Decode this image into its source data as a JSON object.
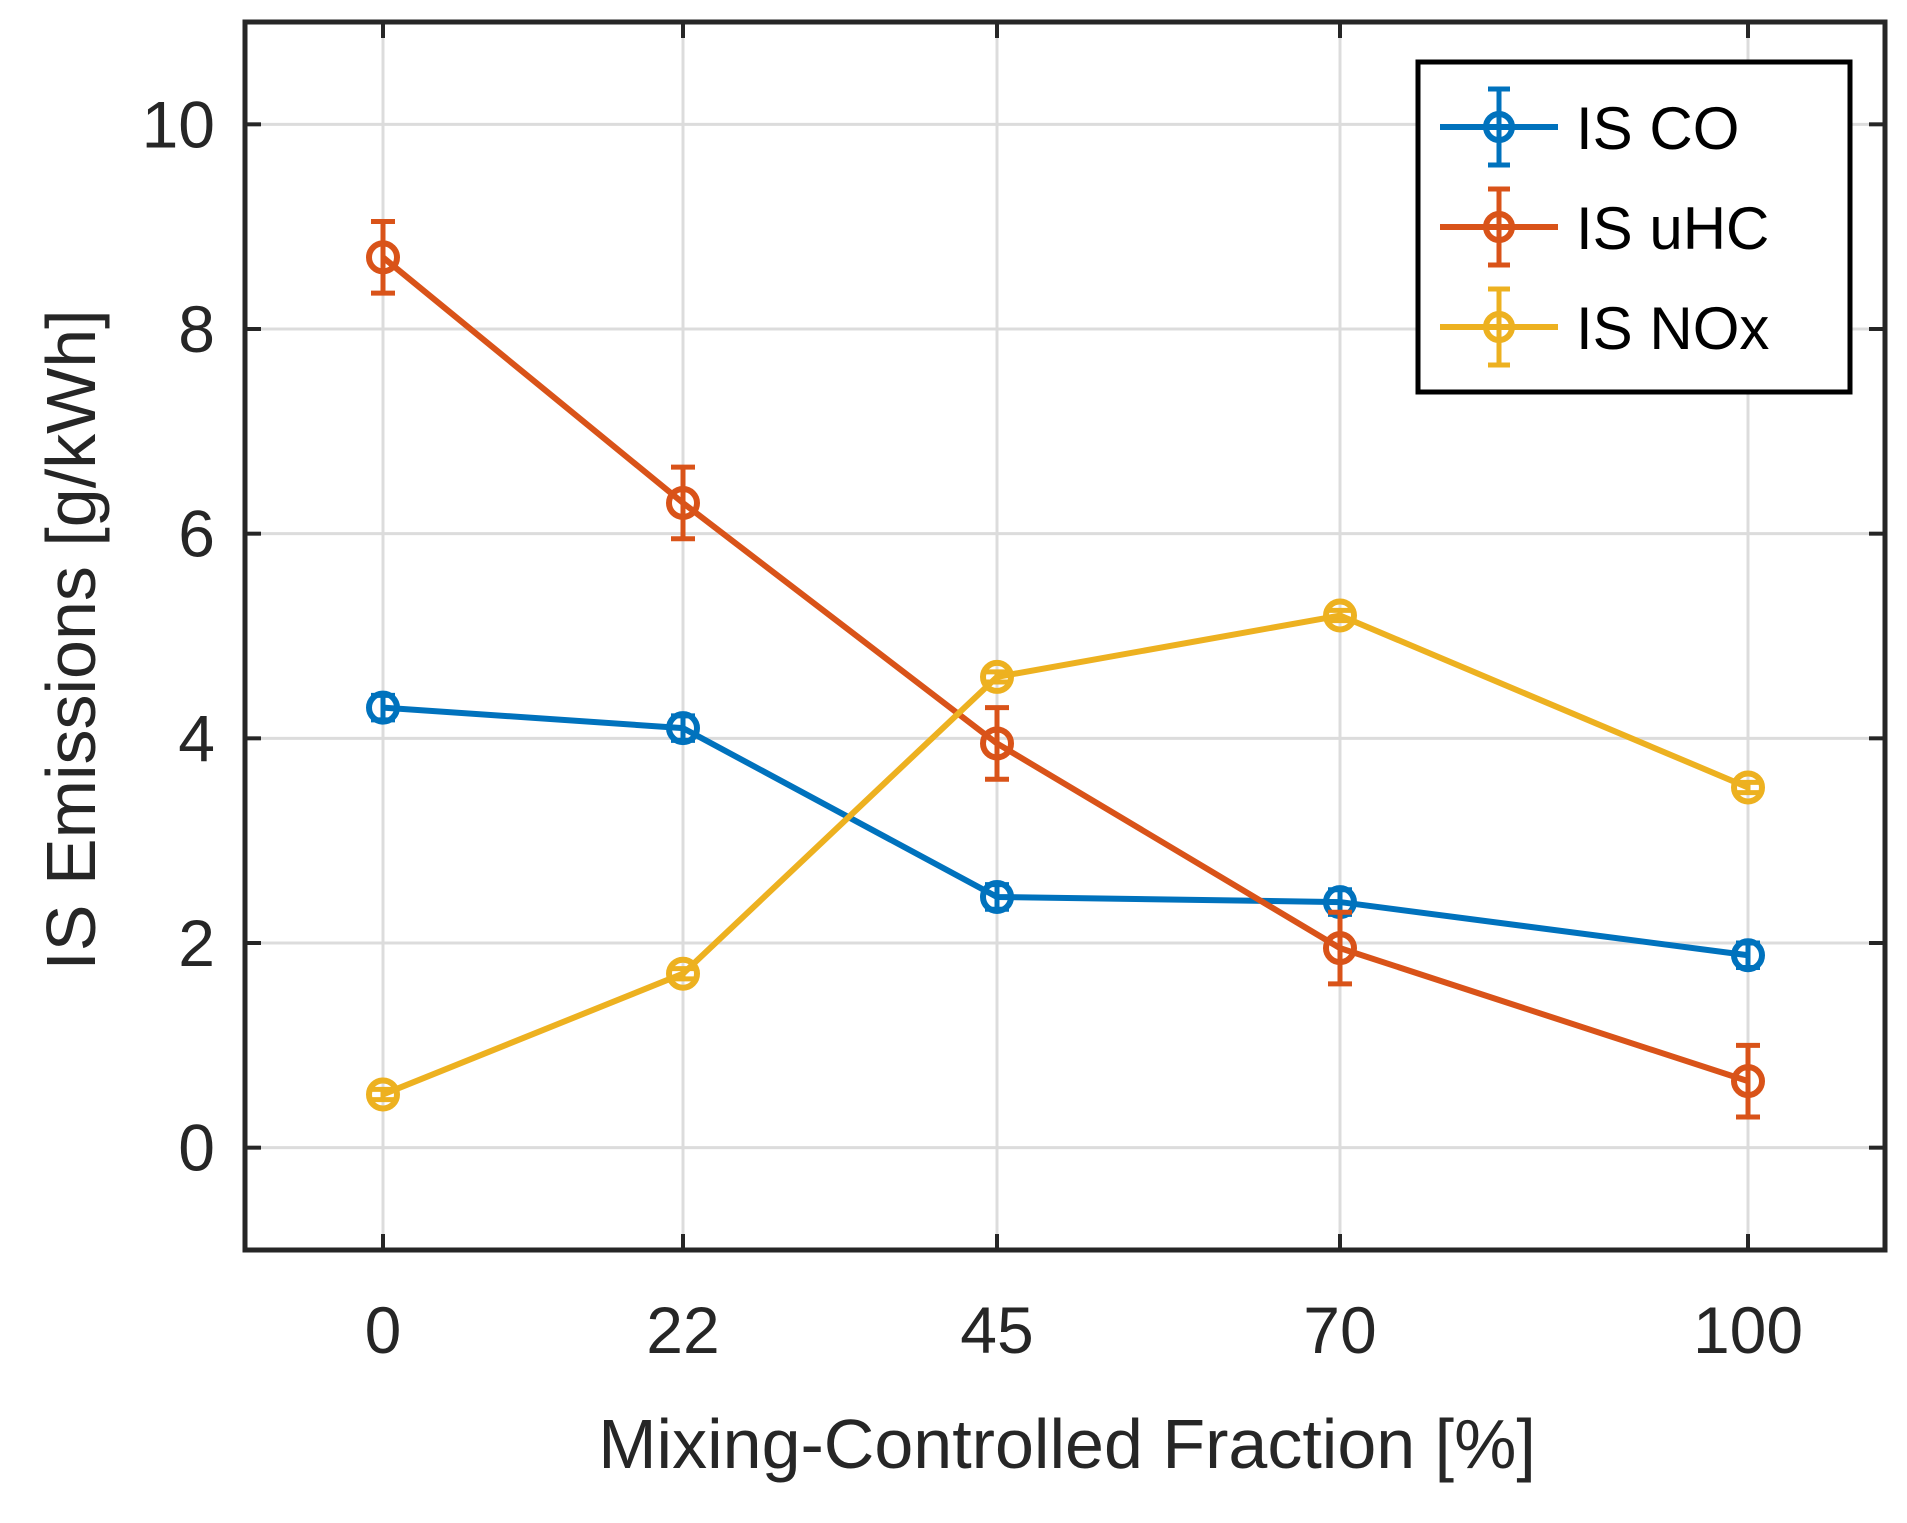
{
  "chart_data": {
    "type": "line",
    "title": "",
    "xlabel": "Mixing-Controlled Fraction [%]",
    "ylabel": "IS Emissions [g/kWh]",
    "x": [
      0,
      22,
      45,
      70,
      100
    ],
    "x_tick_labels": [
      "0",
      "22",
      "45",
      "70",
      "100"
    ],
    "y_ticks": [
      0,
      2,
      4,
      6,
      8,
      10
    ],
    "y_tick_labels": [
      "0",
      "2",
      "4",
      "6",
      "8",
      "10"
    ],
    "ylim": [
      -1,
      11
    ],
    "grid": true,
    "legend_position": "top-right",
    "series": [
      {
        "name": "IS CO",
        "color": "#0072BD",
        "values": [
          4.3,
          4.1,
          2.45,
          2.4,
          1.88
        ],
        "errors": [
          0.12,
          0.12,
          0.12,
          0.12,
          0.12
        ]
      },
      {
        "name": "IS uHC",
        "color": "#D95319",
        "values": [
          8.7,
          6.3,
          3.95,
          1.95,
          0.65
        ],
        "errors": [
          0.35,
          0.35,
          0.35,
          0.35,
          0.35
        ]
      },
      {
        "name": "IS NOx",
        "color": "#EDB120",
        "values": [
          0.52,
          1.7,
          4.6,
          5.2,
          3.52
        ],
        "errors": [
          0.05,
          0.05,
          0.05,
          0.05,
          0.05
        ]
      }
    ]
  }
}
